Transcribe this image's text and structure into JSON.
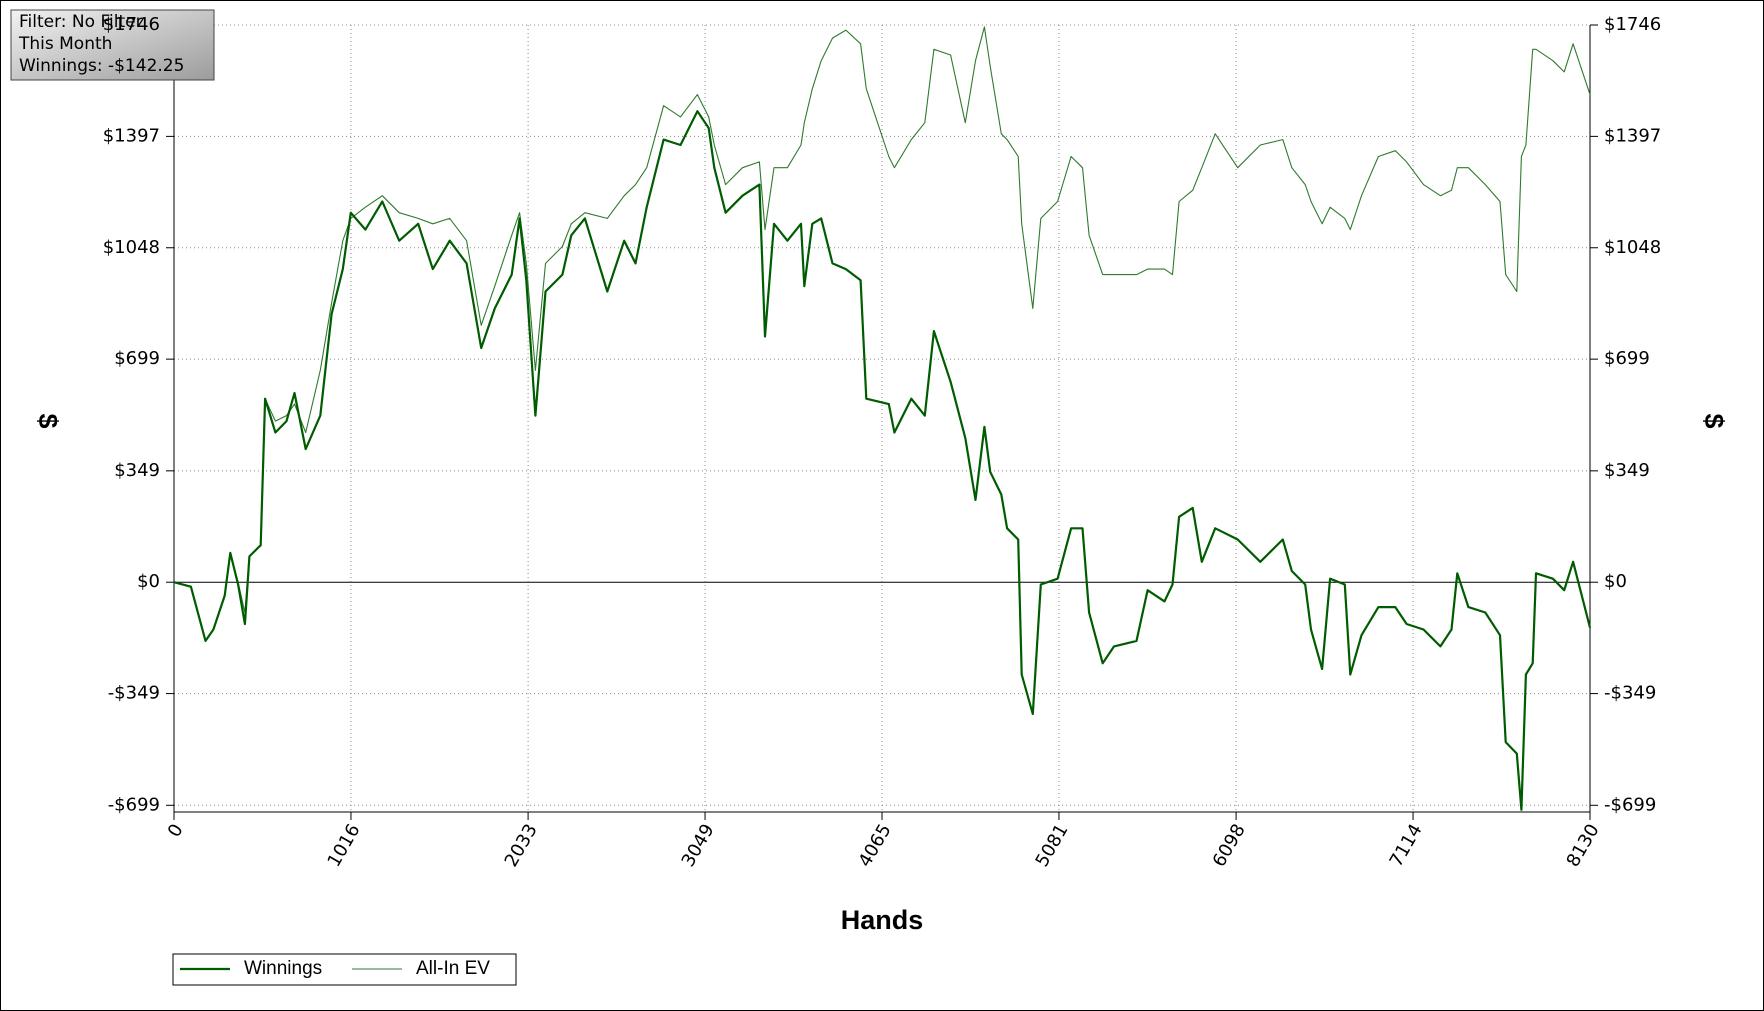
{
  "chart_data": {
    "type": "line",
    "annotations": [
      "Filter: No Filter",
      "This Month",
      "Winnings: -$142.25"
    ],
    "xlabel": "Hands",
    "ylabel": "$",
    "y2label": "$",
    "xlim": [
      0,
      8130
    ],
    "ylim": [
      -720,
      1746
    ],
    "grid": true,
    "xticks": [
      0,
      1016,
      2033,
      3049,
      4065,
      5081,
      6098,
      7114,
      8130
    ],
    "yticks": [
      {
        "value": -699,
        "label": "-$699"
      },
      {
        "value": -349,
        "label": "-$349"
      },
      {
        "value": 0,
        "label": "$0"
      },
      {
        "value": 349,
        "label": "$349"
      },
      {
        "value": 699,
        "label": "$699"
      },
      {
        "value": 1048,
        "label": "$1048"
      },
      {
        "value": 1397,
        "label": "$1397"
      },
      {
        "value": 1746,
        "label": "$1746"
      }
    ],
    "x": [
      0,
      97,
      181,
      226,
      291,
      323,
      368,
      407,
      433,
      498,
      523,
      582,
      646,
      692,
      756,
      840,
      905,
      969,
      1015,
      1099,
      1196,
      1293,
      1402,
      1486,
      1583,
      1680,
      1764,
      1842,
      1939,
      1984,
      2023,
      2075,
      2133,
      2230,
      2281,
      2359,
      2488,
      2585,
      2650,
      2714,
      2811,
      2908,
      3005,
      3070,
      3102,
      3167,
      3264,
      3361,
      3393,
      3445,
      3522,
      3600,
      3619,
      3665,
      3716,
      3781,
      3858,
      3942,
      3975,
      4104,
      4136,
      4233,
      4311,
      4363,
      4459,
      4543,
      4602,
      4653,
      4686,
      4750,
      4783,
      4847,
      4867,
      4931,
      4977,
      5073,
      5151,
      5216,
      5254,
      5332,
      5397,
      5526,
      5590,
      5687,
      5733,
      5771,
      5849,
      5901,
      5978,
      6107,
      6237,
      6366,
      6418,
      6495,
      6528,
      6592,
      6638,
      6722,
      6754,
      6818,
      6915,
      7012,
      7077,
      7174,
      7271,
      7335,
      7368,
      7432,
      7529,
      7613,
      7646,
      7710,
      7736,
      7762,
      7801,
      7820,
      7917,
      7982,
      8033,
      8130
    ],
    "series": [
      {
        "name": "Winnings",
        "color": "#005c00",
        "values": [
          0,
          -14,
          -184,
          -148,
          -42,
          92,
          -7,
          -131,
          81,
          116,
          575,
          469,
          505,
          593,
          417,
          522,
          840,
          981,
          1158,
          1105,
          1193,
          1070,
          1123,
          981,
          1070,
          999,
          734,
          858,
          964,
          1140,
          946,
          522,
          911,
          964,
          1087,
          1140,
          911,
          1070,
          999,
          1175,
          1387,
          1370,
          1476,
          1423,
          1299,
          1158,
          1211,
          1246,
          770,
          1123,
          1070,
          1123,
          928,
          1123,
          1140,
          999,
          981,
          946,
          575,
          558,
          469,
          575,
          522,
          787,
          628,
          452,
          258,
          487,
          346,
          275,
          169,
          134,
          -289,
          -413,
          -7,
          11,
          169,
          169,
          -95,
          -254,
          -201,
          -184,
          -25,
          -60,
          -7,
          205,
          233,
          64,
          169,
          134,
          64,
          134,
          35,
          -7,
          -148,
          -272,
          11,
          -7,
          -289,
          -166,
          -78,
          -78,
          -131,
          -148,
          -201,
          -148,
          28,
          -78,
          -95,
          -166,
          -501,
          -537,
          -713,
          -289,
          -254,
          28,
          11,
          -25,
          64,
          -142.25
        ]
      },
      {
        "name": "All-In EV",
        "color": "#2f7a2f",
        "values": [
          0,
          -14,
          -184,
          -148,
          -42,
          92,
          0,
          -95,
          81,
          116,
          575,
          505,
          522,
          558,
          469,
          664,
          875,
          1070,
          1140,
          1175,
          1211,
          1158,
          1140,
          1123,
          1140,
          1070,
          805,
          928,
          1087,
          1158,
          999,
          664,
          999,
          1052,
          1123,
          1158,
          1140,
          1211,
          1246,
          1299,
          1493,
          1458,
          1528,
          1458,
          1370,
          1246,
          1299,
          1317,
          1105,
          1299,
          1299,
          1370,
          1440,
          1546,
          1634,
          1705,
          1730,
          1687,
          1546,
          1334,
          1299,
          1387,
          1440,
          1670,
          1652,
          1440,
          1634,
          1740,
          1617,
          1405,
          1387,
          1334,
          1123,
          858,
          1140,
          1193,
          1334,
          1299,
          1087,
          964,
          964,
          964,
          981,
          981,
          964,
          1193,
          1228,
          1299,
          1405,
          1299,
          1370,
          1387,
          1299,
          1246,
          1193,
          1123,
          1175,
          1140,
          1105,
          1211,
          1334,
          1352,
          1317,
          1246,
          1211,
          1228,
          1299,
          1299,
          1246,
          1193,
          964,
          911,
          1334,
          1370,
          1670,
          1670,
          1634,
          1599,
          1687,
          1528
        ]
      }
    ]
  }
}
